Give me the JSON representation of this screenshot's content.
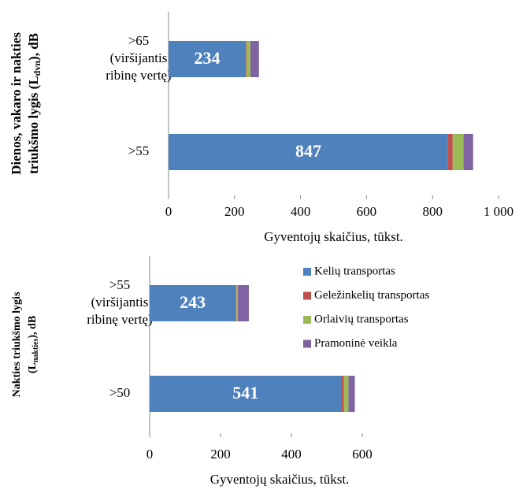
{
  "chart_data": [
    {
      "type": "bar",
      "orientation": "horizontal",
      "stacked": true,
      "ylabel": [
        "Dienos, vakaro ir nakties",
        "triukšmo lygis (L",
        "dvn",
        "), dB"
      ],
      "xlabel": "Gyventojų skaičius, tūkst.",
      "categories": [
        [
          ">65",
          "(viršijantis",
          "ribinę vertę)"
        ],
        [
          ">55"
        ]
      ],
      "series": [
        {
          "color": "#4f81bd",
          "values": [
            234,
            847
          ],
          "value_labels": [
            "234",
            "847"
          ]
        },
        {
          "color": "#c0504d",
          "values": [
            2,
            14
          ]
        },
        {
          "color": "#9bbb59",
          "values": [
            12,
            33
          ]
        },
        {
          "color": "#8064a2",
          "values": [
            26,
            29
          ]
        }
      ],
      "xlim": [
        0,
        1000
      ],
      "xticks": [
        0,
        200,
        400,
        600,
        800,
        {
          "value": 1000,
          "label": "1 000"
        }
      ]
    },
    {
      "type": "bar",
      "orientation": "horizontal",
      "stacked": true,
      "legend": "upper right",
      "ylabel": [
        "Nakties triukšmo lygis",
        "(L",
        "nakties",
        "), dB"
      ],
      "xlabel": "Gyventojų skaičius, tūkst.",
      "categories": [
        [
          ">55",
          "(viršijantis",
          "ribinę vertę)"
        ],
        [
          ">50"
        ]
      ],
      "series": [
        {
          "name": "Kelių transportas",
          "color": "#4f81bd",
          "values": [
            243,
            541
          ],
          "value_labels": [
            "243",
            "541"
          ]
        },
        {
          "name": "Geležinkelių transportas",
          "color": "#c0504d",
          "values": [
            2,
            7
          ]
        },
        {
          "name": "Orlaivių transportas",
          "color": "#9bbb59",
          "values": [
            4,
            13
          ]
        },
        {
          "name": "Pramoninė veikla",
          "color": "#8064a2",
          "values": [
            31,
            18
          ]
        }
      ],
      "xlim": [
        0,
        600
      ],
      "xticks": [
        0,
        200,
        400,
        600
      ]
    }
  ]
}
